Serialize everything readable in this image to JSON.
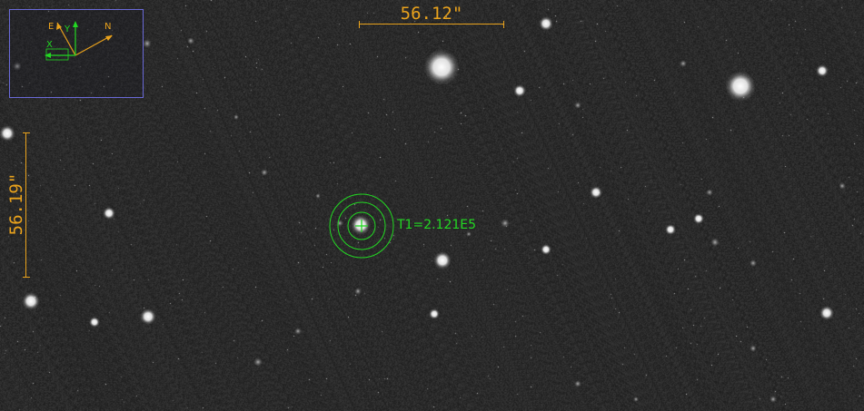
{
  "image": {
    "background_color": "#2a2a2a",
    "accent_scale": "#e9a21c",
    "accent_aperture": "#22d822",
    "accent_compass_box": "#6a6ad8"
  },
  "compass": {
    "axis_labels": {
      "east": "E",
      "north": "N",
      "x": "X",
      "y": "Y"
    },
    "colors": {
      "sky_axes": "#e9a21c",
      "pixel_axes": "#22d822"
    }
  },
  "scale_bars": {
    "horizontal_label": "56.12\"",
    "vertical_label": "56.19\""
  },
  "target": {
    "label": "T1=2.121E5"
  }
}
